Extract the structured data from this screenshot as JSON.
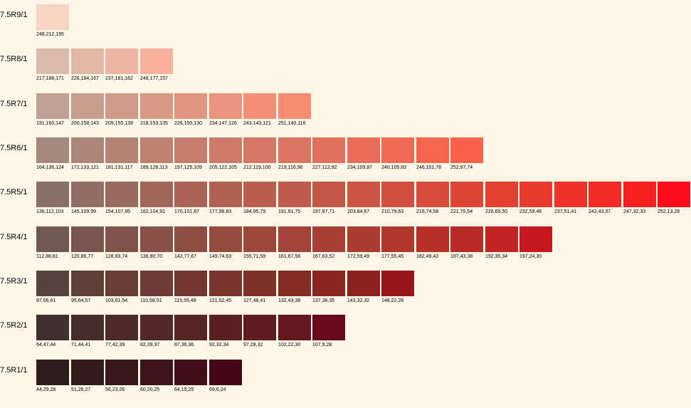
{
  "rows": [
    {
      "label": "7.5R9/1",
      "swatches": [
        "248,212,195"
      ]
    },
    {
      "label": "7.5R8/1",
      "swatches": [
        "217,186,171",
        "226,184,167",
        "237,181,162",
        "248,177,157"
      ]
    },
    {
      "label": "7.5R7/1",
      "swatches": [
        "191,160,147",
        "200,158,143",
        "209,155,139",
        "218,153,135",
        "226,150,130",
        "234,147,126",
        "243,143,121",
        "251,140,116"
      ]
    },
    {
      "label": "7.5R6/1",
      "swatches": [
        "164,136,124",
        "172,133,121",
        "181,131,117",
        "189,128,113",
        "197,125,109",
        "205,122,105",
        "212,119,100",
        "219,116,96",
        "227,112,92",
        "234,109,87",
        "240,105,83",
        "246,101,78",
        "252,97,74"
      ]
    },
    {
      "label": "7.5R5/1",
      "swatches": [
        "136,112,103",
        "145,109,99",
        "154,107,95",
        "162,104,91",
        "170,101,87",
        "177,98,83",
        "184,95,79",
        "191,91,75",
        "197,87,71",
        "203,84,67",
        "210,79,63",
        "216,74,58",
        "221,70,54",
        "226,65,50",
        "232,59,46",
        "237,51,41",
        "242,43,37",
        "247,32,33",
        "252,13,28"
      ]
    },
    {
      "label": "7.5R4/1",
      "swatches": [
        "112,88,81",
        "120,86,77",
        "128,83,74",
        "136,80,70",
        "142,77,67",
        "149,74,63",
        "155,71,59",
        "161,67,56",
        "167,63,52",
        "172,59,49",
        "177,55,45",
        "182,49,42",
        "187,43,38",
        "192,35,34",
        "197,24,30"
      ]
    },
    {
      "label": "7.5R3/1",
      "swatches": [
        "87,66,61",
        "95,64,57",
        "103,61,54",
        "110,58,51",
        "115,55,48",
        "121,52,45",
        "127,48,41",
        "132,43,38",
        "137,38,35",
        "143,32,32",
        "148,22,28"
      ]
    },
    {
      "label": "7.5R2/1",
      "swatches": [
        "64,47,44",
        "71,44,41",
        "77,42,39",
        "82,39,37",
        "87,36,36",
        "92,32,34",
        "97,28,32",
        "102,22,30",
        "107,9,28"
      ]
    },
    {
      "label": "7.5R1/1",
      "swatches": [
        "44,29,28",
        "51,26,27",
        "56,23,26",
        "60,20,25",
        "64,15,25",
        "69,6,24"
      ]
    }
  ]
}
